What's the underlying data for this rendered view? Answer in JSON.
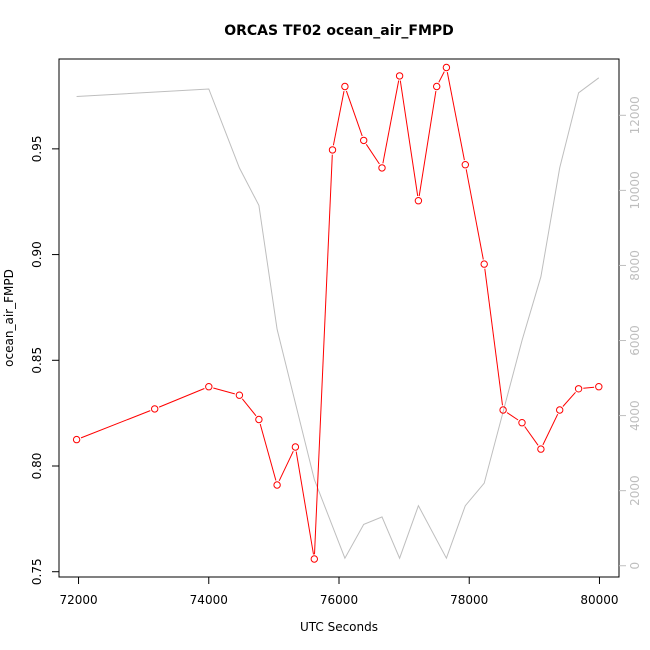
{
  "chart_data": {
    "type": "line",
    "title": "ORCAS TF02 ocean_air_FMPD",
    "xlabel": "UTC Seconds",
    "ylabel": "ocean_air_FMPD",
    "xlim": [
      71700,
      80300
    ],
    "ylim": [
      0.7475,
      0.9925
    ],
    "y2lim": [
      -300,
      13500
    ],
    "x_ticks": [
      72000,
      74000,
      76000,
      78000,
      80000
    ],
    "x_tick_labels": [
      "72000",
      "74000",
      "76000",
      "78000",
      "80000"
    ],
    "y_ticks": [
      0.75,
      0.8,
      0.85,
      0.9,
      0.95
    ],
    "y_tick_labels": [
      "0.75",
      "0.80",
      "0.85",
      "0.90",
      "0.95"
    ],
    "y2_ticks": [
      0,
      2000,
      4000,
      6000,
      8000,
      10000,
      12000
    ],
    "y2_tick_labels": [
      "0",
      "2000",
      "4000",
      "6000",
      "8000",
      "10000",
      "12000"
    ],
    "colors": {
      "primary": "#ff0000",
      "secondary": "#bebebe"
    },
    "series": [
      {
        "axis": "left",
        "style": "line+points",
        "x": [
          71970,
          73170,
          74000,
          74470,
          74770,
          75050,
          75330,
          75620,
          75900,
          76090,
          76380,
          76660,
          76930,
          77220,
          77500,
          77650,
          77940,
          78230,
          78520,
          78810,
          79100,
          79390,
          79680,
          79990
        ],
        "values": [
          0.8125,
          0.827,
          0.8375,
          0.8335,
          0.822,
          0.791,
          0.809,
          0.756,
          0.9495,
          0.9795,
          0.954,
          0.941,
          0.9845,
          0.9255,
          0.9795,
          0.9885,
          0.9425,
          0.8955,
          0.8265,
          0.8205,
          0.808,
          0.8265,
          0.8365,
          0.8375
        ]
      },
      {
        "axis": "right",
        "style": "line",
        "x": [
          71970,
          74000,
          74470,
          74770,
          75050,
          75620,
          76090,
          76380,
          76660,
          76930,
          77220,
          77650,
          77940,
          78230,
          78810,
          79100,
          79390,
          79680,
          79990
        ],
        "values": [
          12500,
          12700,
          10600,
          9600,
          6300,
          2300,
          200,
          1100,
          1300,
          200,
          1600,
          200,
          1600,
          2200,
          6000,
          7700,
          10600,
          12600,
          13000
        ]
      }
    ]
  }
}
